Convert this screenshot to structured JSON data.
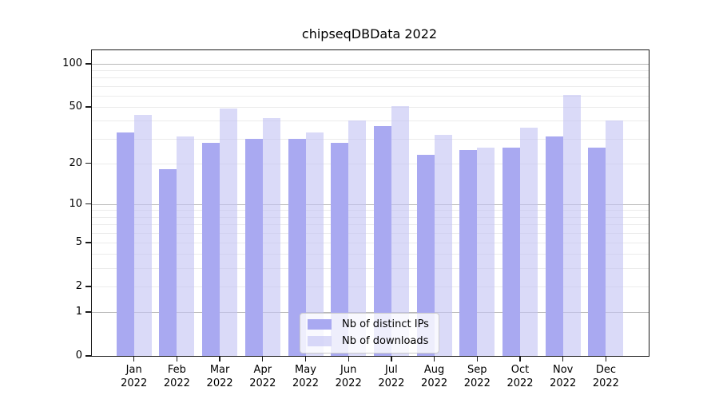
{
  "chart_data": {
    "type": "bar",
    "title": "chipseqDBData 2022",
    "categories": [
      "Jan",
      "Feb",
      "Mar",
      "Apr",
      "May",
      "Jun",
      "Jul",
      "Aug",
      "Sep",
      "Oct",
      "Nov",
      "Dec"
    ],
    "x_sublabel": "2022",
    "series": [
      {
        "name": "Nb of distinct IPs",
        "color": "#a9a9f1",
        "values": [
          33,
          18,
          28,
          30,
          30,
          28,
          37,
          23,
          25,
          26,
          31,
          26
        ]
      },
      {
        "name": "Nb of downloads",
        "color": "rgba(196,196,244,0.62)",
        "values": [
          44,
          31,
          49,
          42,
          33,
          40,
          51,
          32,
          26,
          36,
          61,
          40
        ]
      }
    ],
    "yscale": "log1p",
    "ylim": [
      0,
      124
    ],
    "yticks": [
      0,
      1,
      2,
      5,
      10,
      20,
      50,
      100
    ],
    "ytick_labels": [
      "0",
      "1",
      "2",
      "5",
      "10",
      "20",
      "50",
      "100"
    ],
    "major_grid_values": [
      1,
      10,
      100
    ],
    "minor_grid_values": [
      2,
      3,
      4,
      5,
      6,
      7,
      8,
      9,
      20,
      30,
      40,
      50,
      60,
      70,
      80,
      90
    ],
    "grid": true,
    "legend_position": "bottom-center",
    "colors": {
      "axis": "#1a1a1a",
      "major_grid": "#b8b8b8",
      "minor_grid": "#ebebeb",
      "legend_border": "#cccccc",
      "background": "#ffffff"
    }
  }
}
